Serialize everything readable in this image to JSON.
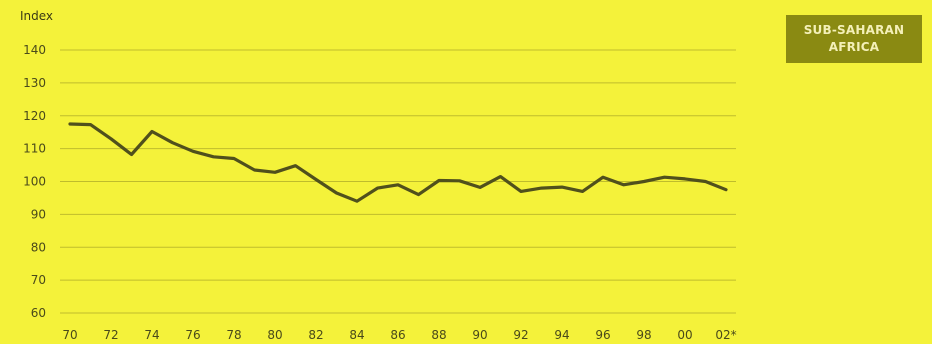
{
  "badge": {
    "line1": "SUB-SAHARAN",
    "line2": "AFRICA"
  },
  "colors": {
    "background": "#f4f23a",
    "line": "#50501c",
    "grid": "#bfbc2c",
    "badge": "#8a8a12"
  },
  "chart_data": {
    "type": "line",
    "ylabel": "Index",
    "ylim": [
      60,
      140
    ],
    "yticks": [
      60,
      70,
      80,
      90,
      100,
      110,
      120,
      130,
      140
    ],
    "xlim": [
      1970,
      2002
    ],
    "xtick_values": [
      1970,
      1972,
      1974,
      1976,
      1978,
      1980,
      1982,
      1984,
      1986,
      1988,
      1990,
      1992,
      1994,
      1996,
      1998,
      2000,
      2002
    ],
    "xtick_labels": [
      "70",
      "72",
      "74",
      "76",
      "78",
      "80",
      "82",
      "84",
      "86",
      "88",
      "90",
      "92",
      "94",
      "96",
      "98",
      "00",
      "02*"
    ],
    "grid": "horizontal",
    "x": [
      1970,
      1971,
      1972,
      1973,
      1974,
      1975,
      1976,
      1977,
      1978,
      1979,
      1980,
      1981,
      1982,
      1983,
      1984,
      1985,
      1986,
      1987,
      1988,
      1989,
      1990,
      1991,
      1992,
      1993,
      1994,
      1995,
      1996,
      1997,
      1998,
      1999,
      2000,
      2001,
      2002
    ],
    "values": [
      117.5,
      117.3,
      113,
      108.2,
      115.2,
      111.8,
      109.2,
      107.5,
      107,
      103.5,
      102.8,
      104.8,
      100.6,
      96.5,
      94,
      98,
      99,
      96,
      100.3,
      100.2,
      98.2,
      101.5,
      97,
      98,
      98.3,
      97,
      101.3,
      99,
      100,
      101.3,
      100.8,
      100,
      97.5
    ]
  }
}
